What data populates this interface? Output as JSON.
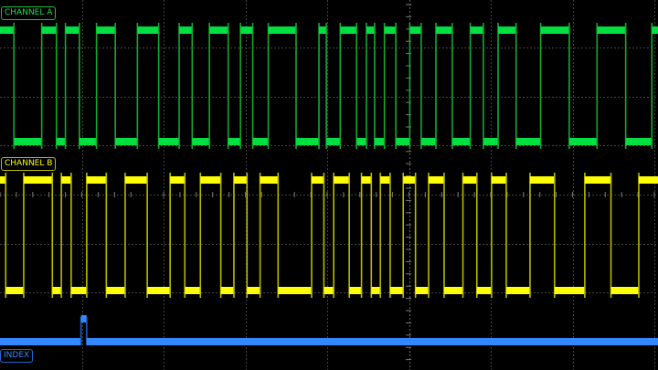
{
  "chart_data": {
    "type": "line",
    "xlim": [
      0,
      8.045
    ],
    "grid": true,
    "series": [
      {
        "name": "CHANNEL A",
        "color": "#00e040",
        "start_level": 1,
        "edges": [
          0.17,
          0.51,
          0.69,
          0.8,
          0.97,
          1.18,
          1.41,
          1.68,
          1.94,
          2.19,
          2.35,
          2.56,
          2.79,
          2.94,
          3.09,
          3.28,
          3.62,
          3.9,
          3.99,
          4.16,
          4.36,
          4.48,
          4.58,
          4.7,
          4.84,
          5.01,
          5.15,
          5.33,
          5.53,
          5.75,
          5.91,
          6.09,
          6.31,
          6.61,
          6.96,
          7.3,
          7.65,
          7.97
        ]
      },
      {
        "name": "CHANNEL B",
        "color": "#ffff00",
        "start_level": 1,
        "edges": [
          0.07,
          0.29,
          0.64,
          0.75,
          0.87,
          1.06,
          1.3,
          1.53,
          1.8,
          2.08,
          2.26,
          2.45,
          2.7,
          2.86,
          3.02,
          3.18,
          3.4,
          3.81,
          3.96,
          4.08,
          4.27,
          4.42,
          4.54,
          4.65,
          4.77,
          4.93,
          5.08,
          5.24,
          5.43,
          5.66,
          5.83,
          6.01,
          6.19,
          6.48,
          6.78,
          7.15,
          7.47,
          7.81
        ]
      },
      {
        "name": "INDEX",
        "color": "#3388ff",
        "start_level": 0,
        "edges": [
          0.99,
          1.06
        ]
      }
    ]
  }
}
